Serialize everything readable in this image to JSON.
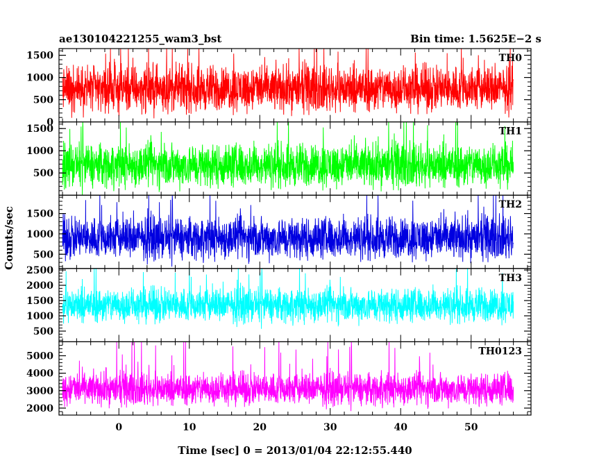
{
  "header": {
    "left": "ae130104221255_wam3_bst",
    "right": "Bin time: 1.5625E−2 s"
  },
  "chart_data": {
    "type": "line",
    "xlabel": "Time [sec] 0 = 2013/01/04 22:12:55.440",
    "ylabel": "Counts/sec",
    "xlim": [
      -8.5,
      58.5
    ],
    "x_data_range": [
      -8.0,
      56.0
    ],
    "x_ticks": [
      0,
      10,
      20,
      30,
      40,
      50
    ],
    "x_tick_labels": [
      "0",
      "10",
      "20",
      "30",
      "40",
      "50"
    ],
    "panels": [
      {
        "label": "TH0",
        "color": "#ff0000",
        "ylim": [
          0,
          1650
        ],
        "y_ticks": [
          0,
          500,
          1000,
          1500
        ],
        "y_tick_labels": [
          "0",
          "500",
          "1000",
          "1500"
        ],
        "typical_range": [
          250,
          1250
        ],
        "min": 0,
        "max": 1650
      },
      {
        "label": "TH1",
        "color": "#00ff00",
        "ylim": [
          0,
          1650
        ],
        "y_ticks": [
          500,
          1000,
          1500
        ],
        "y_tick_labels": [
          "500",
          "1000",
          "1500"
        ],
        "typical_range": [
          200,
          1150
        ],
        "min": 0,
        "max": 1650
      },
      {
        "label": "TH2",
        "color": "#0000e0",
        "ylim": [
          150,
          1950
        ],
        "y_ticks": [
          500,
          1000,
          1500
        ],
        "y_tick_labels": [
          "500",
          "1000",
          "1500"
        ],
        "typical_range": [
          400,
          1400
        ],
        "min": 180,
        "max": 1950
      },
      {
        "label": "TH3",
        "color": "#00ffff",
        "ylim": [
          150,
          2550
        ],
        "y_ticks": [
          500,
          1000,
          1500,
          2000,
          2500
        ],
        "y_tick_labels": [
          "500",
          "1000",
          "1500",
          "2000",
          "2500"
        ],
        "typical_range": [
          800,
          1900
        ],
        "min": 300,
        "max": 2550
      },
      {
        "label": "TH0123",
        "color": "#ff00ff",
        "ylim": [
          1600,
          5800
        ],
        "y_ticks": [
          2000,
          3000,
          4000,
          5000
        ],
        "y_tick_labels": [
          "2000",
          "3000",
          "4000",
          "5000"
        ],
        "typical_range": [
          2200,
          4000
        ],
        "min": 1700,
        "max": 5800
      }
    ]
  }
}
